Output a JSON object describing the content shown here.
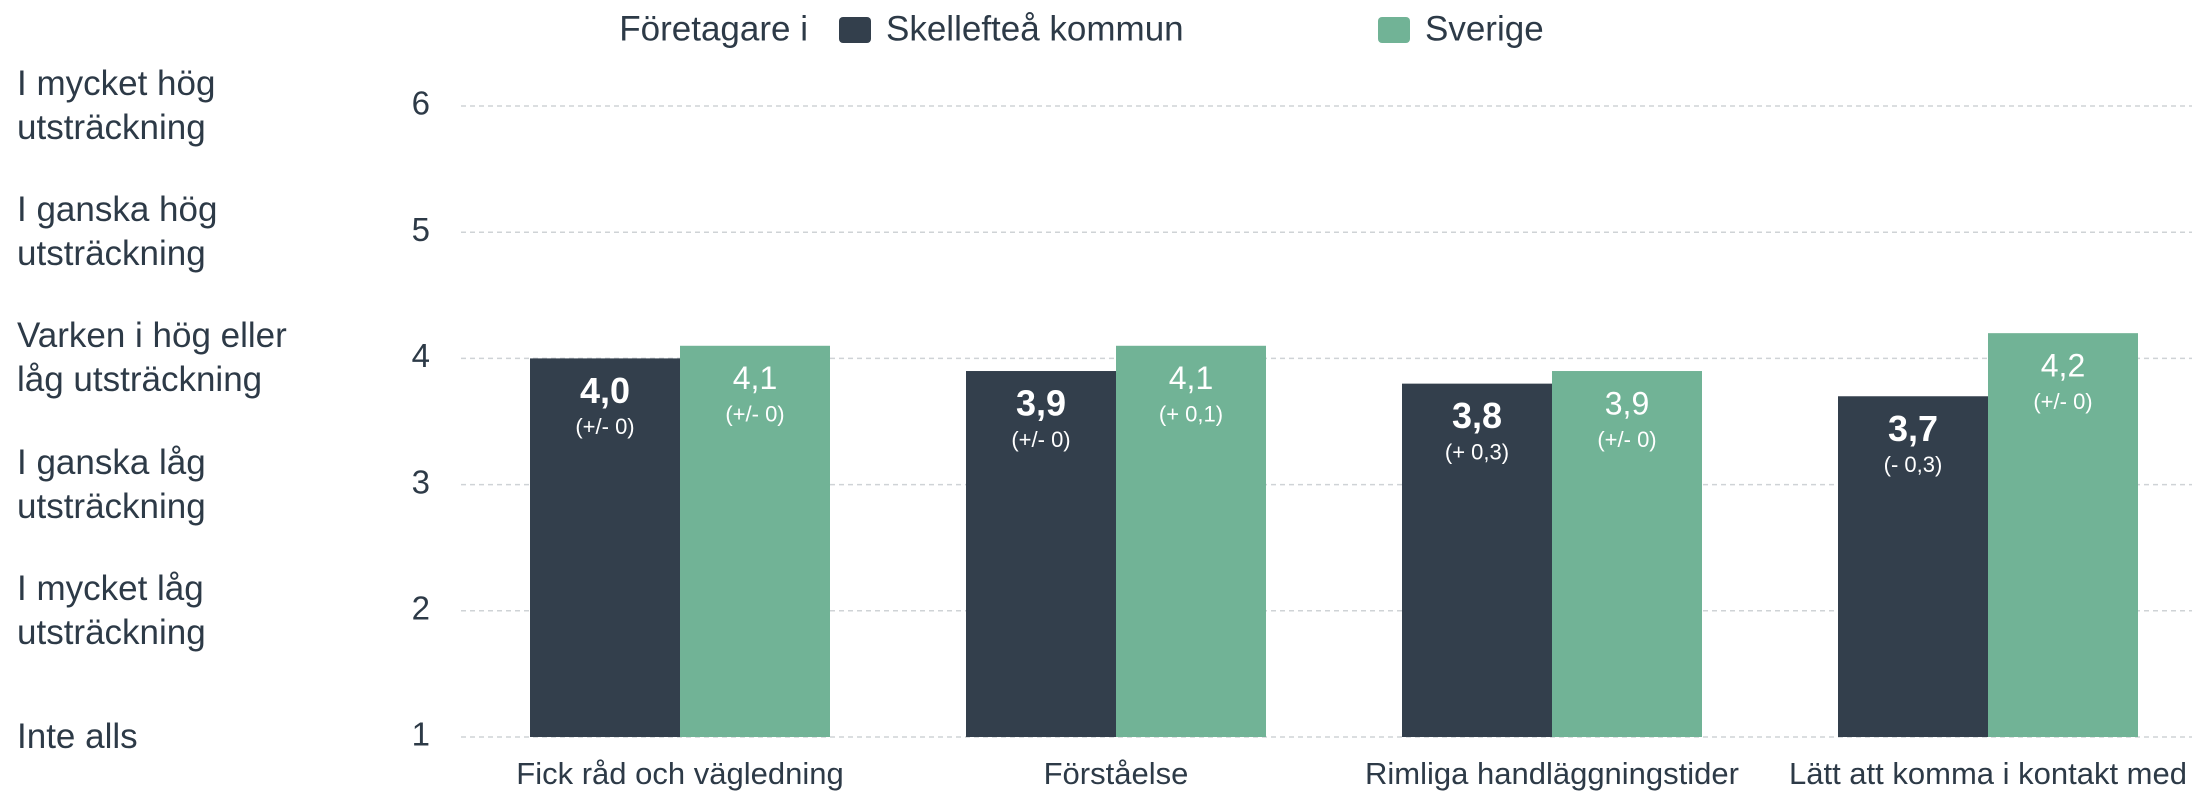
{
  "chart_data": {
    "type": "bar",
    "legend_title": "Företagare i",
    "categories": [
      "Fick råd och vägledning",
      "Förståelse",
      "Rimliga handläggningstider",
      "Lätt att komma i kontakt med"
    ],
    "series": [
      {
        "name": "Skellefteå kommun",
        "color": "#333f4c",
        "values": [
          4.0,
          3.9,
          3.8,
          3.7
        ],
        "value_labels": [
          "4,0",
          "3,9",
          "3,8",
          "3,7"
        ],
        "change_labels": [
          "(+/- 0)",
          "(+/- 0)",
          "(+ 0,3)",
          "(- 0,3)"
        ]
      },
      {
        "name": "Sverige",
        "color": "#71b396",
        "values": [
          4.1,
          4.1,
          3.9,
          4.2
        ],
        "value_labels": [
          "4,1",
          "4,1",
          "3,9",
          "4,2"
        ],
        "change_labels": [
          "(+/- 0)",
          "(+ 0,1)",
          "(+/- 0)",
          "(+/- 0)"
        ]
      }
    ],
    "ylim": [
      1,
      6
    ],
    "yticks": [
      1,
      2,
      3,
      4,
      5,
      6
    ],
    "level_labels": [
      "Inte alls",
      "I mycket låg utsträckning",
      "I ganska låg utsträckning",
      "Varken i hög eller låg utsträckning",
      "I ganska hög utsträckning",
      "I mycket hög utsträckning"
    ],
    "grid": true
  }
}
